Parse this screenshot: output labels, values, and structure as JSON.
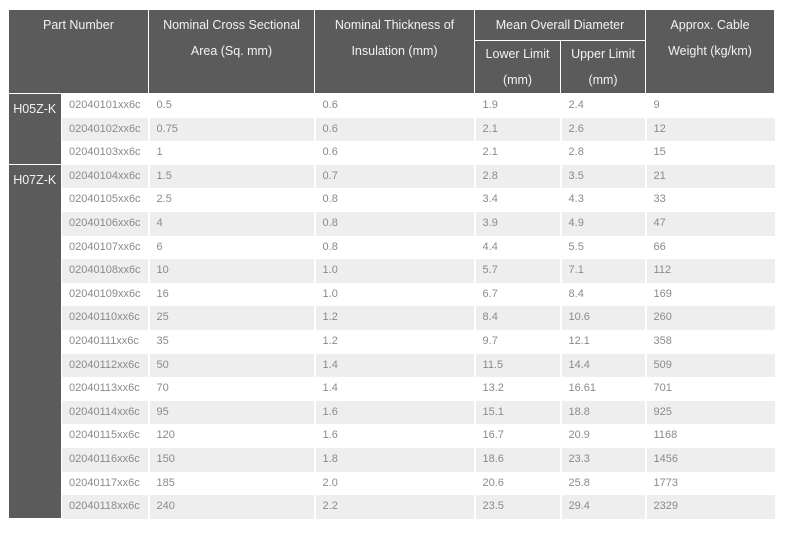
{
  "headers": {
    "part_number": "Part Number",
    "cross_section": "Nominal Cross Sectional Area (Sq. mm)",
    "insulation": "Nominal Thickness of Insulation (mm)",
    "diameter": "Mean Overall Diameter",
    "lower_limit": "Lower Limit (mm)",
    "upper_limit": "Upper Limit (mm)",
    "weight": "Approx. Cable Weight (kg/km)"
  },
  "groups": [
    {
      "name": "H05Z-K",
      "rows": [
        {
          "part": "02040101xx6c",
          "area": "0.5",
          "insulation": "0.6",
          "lower": "1.9",
          "upper": "2.4",
          "weight": "9"
        },
        {
          "part": "02040102xx6c",
          "area": "0.75",
          "insulation": "0.6",
          "lower": "2.1",
          "upper": "2.6",
          "weight": "12"
        },
        {
          "part": "02040103xx6c",
          "area": "1",
          "insulation": "0.6",
          "lower": "2.1",
          "upper": "2.8",
          "weight": "15"
        }
      ]
    },
    {
      "name": "H07Z-K",
      "rows": [
        {
          "part": "02040104xx6c",
          "area": "1.5",
          "insulation": "0.7",
          "lower": "2.8",
          "upper": "3.5",
          "weight": "21"
        },
        {
          "part": "02040105xx6c",
          "area": "2.5",
          "insulation": "0.8",
          "lower": "3.4",
          "upper": "4.3",
          "weight": "33"
        },
        {
          "part": "02040106xx6c",
          "area": "4",
          "insulation": "0.8",
          "lower": "3.9",
          "upper": "4.9",
          "weight": "47"
        },
        {
          "part": "02040107xx6c",
          "area": "6",
          "insulation": "0.8",
          "lower": "4.4",
          "upper": "5.5",
          "weight": "66"
        },
        {
          "part": "02040108xx6c",
          "area": "10",
          "insulation": "1.0",
          "lower": "5.7",
          "upper": "7.1",
          "weight": "112"
        },
        {
          "part": "02040109xx6c",
          "area": "16",
          "insulation": "1.0",
          "lower": "6.7",
          "upper": "8.4",
          "weight": "169"
        },
        {
          "part": "02040110xx6c",
          "area": "25",
          "insulation": "1.2",
          "lower": "8.4",
          "upper": "10.6",
          "weight": "260"
        },
        {
          "part": "02040111xx6c",
          "area": "35",
          "insulation": "1.2",
          "lower": "9.7",
          "upper": "12.1",
          "weight": "358"
        },
        {
          "part": "02040112xx6c",
          "area": "50",
          "insulation": "1.4",
          "lower": "11.5",
          "upper": "14.4",
          "weight": "509"
        },
        {
          "part": "02040113xx6c",
          "area": "70",
          "insulation": "1.4",
          "lower": "13.2",
          "upper": "16.61",
          "weight": "701"
        },
        {
          "part": "02040114xx6c",
          "area": "95",
          "insulation": "1.6",
          "lower": "15.1",
          "upper": "18.8",
          "weight": "925"
        },
        {
          "part": "02040115xx6c",
          "area": "120",
          "insulation": "1.6",
          "lower": "16.7",
          "upper": "20.9",
          "weight": "1168"
        },
        {
          "part": "02040116xx6c",
          "area": "150",
          "insulation": "1.8",
          "lower": "18.6",
          "upper": "23.3",
          "weight": "1456"
        },
        {
          "part": "02040117xx6c",
          "area": "185",
          "insulation": "2.0",
          "lower": "20.6",
          "upper": "25.8",
          "weight": "1773"
        },
        {
          "part": "02040118xx6c",
          "area": "240",
          "insulation": "2.2",
          "lower": "23.5",
          "upper": "29.4",
          "weight": "2329"
        }
      ]
    }
  ]
}
